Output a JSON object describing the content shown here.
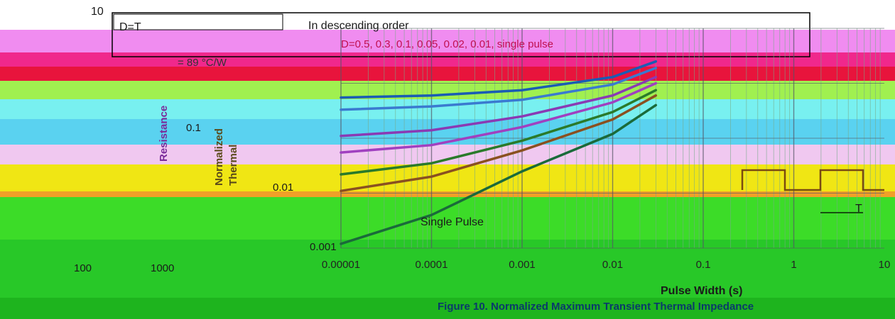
{
  "bands": [
    {
      "color": "#f08cf0"
    },
    {
      "color": "#f0288c"
    },
    {
      "color": "#e8143c"
    },
    {
      "color": "#a0f050"
    },
    {
      "color": "#78f0f0"
    },
    {
      "color": "#5ad2f0"
    },
    {
      "color": "#f0c8f0"
    },
    {
      "color": "#f0e614"
    },
    {
      "color": "#f0a028"
    },
    {
      "color": "#3cdc28"
    },
    {
      "color": "#28c828"
    },
    {
      "color": "#1eb41e"
    }
  ],
  "texts": {
    "top_number": "10",
    "duty_formula": "D=T",
    "order_note": "In descending order",
    "legend_series": "D=0.5, 0.3, 0.1, 0.05, 0.02, 0.01, single pulse",
    "rja_note": "= 89 °C/W",
    "ylabel_a": "Normalized",
    "ylabel_b": "Thermal",
    "ylabel_c": "Resistance",
    "x_left_100": "100",
    "x_left_1000": "1000",
    "single_pulse": "Single Pulse",
    "y_001": "0.01",
    "y_0001": "0.001",
    "y_01": "0.1",
    "pulse_t": "T",
    "xlabel": "Pulse Width (s)",
    "figure_caption": "Figure 10. Normalized Maximum Transient Thermal Impedance"
  },
  "chart_data": {
    "type": "line",
    "title": "Figure 10. Normalized Maximum Transient Thermal Impedance",
    "xlabel": "Pulse Width (s)",
    "ylabel": "Normalized Thermal Resistance",
    "x_scale": "log",
    "y_scale": "log",
    "xlim": [
      1e-05,
      10
    ],
    "ylim": [
      0.001,
      10
    ],
    "x_ticks": [
      "0.00001",
      "0.0001",
      "0.001",
      "0.01",
      "0.1",
      "1",
      "10"
    ],
    "y_ticks": [
      "0.001",
      "0.01",
      "0.1"
    ],
    "grid": true,
    "series": [
      {
        "name": "D=0.5",
        "color": "#1a5cb4",
        "x": [
          1e-05,
          0.0001,
          0.001,
          0.01,
          0.03
        ],
        "y": [
          0.55,
          0.6,
          0.75,
          1.3,
          2.5
        ]
      },
      {
        "name": "D=0.3",
        "color": "#3a7ad0",
        "x": [
          1e-05,
          0.0001,
          0.001,
          0.01,
          0.03
        ],
        "y": [
          0.33,
          0.38,
          0.5,
          0.95,
          1.9
        ]
      },
      {
        "name": "D=0.1",
        "color": "#8a3ab4",
        "x": [
          1e-05,
          0.0001,
          0.001,
          0.01,
          0.03
        ],
        "y": [
          0.11,
          0.14,
          0.25,
          0.6,
          1.3
        ]
      },
      {
        "name": "D=0.05",
        "color": "#a040c0",
        "x": [
          1e-05,
          0.0001,
          0.001,
          0.01,
          0.03
        ],
        "y": [
          0.055,
          0.075,
          0.16,
          0.45,
          1.0
        ]
      },
      {
        "name": "D=0.02",
        "color": "#2a7a2a",
        "x": [
          1e-05,
          0.0001,
          0.001,
          0.01,
          0.03
        ],
        "y": [
          0.022,
          0.035,
          0.09,
          0.3,
          0.75
        ]
      },
      {
        "name": "D=0.01",
        "color": "#8a5020",
        "x": [
          1e-05,
          0.0001,
          0.001,
          0.01,
          0.03
        ],
        "y": [
          0.011,
          0.02,
          0.06,
          0.22,
          0.6
        ]
      },
      {
        "name": "single pulse",
        "color": "#1a6a3a",
        "x": [
          1e-05,
          0.0001,
          0.001,
          0.01,
          0.03
        ],
        "y": [
          0.0012,
          0.004,
          0.025,
          0.12,
          0.4
        ]
      }
    ]
  }
}
